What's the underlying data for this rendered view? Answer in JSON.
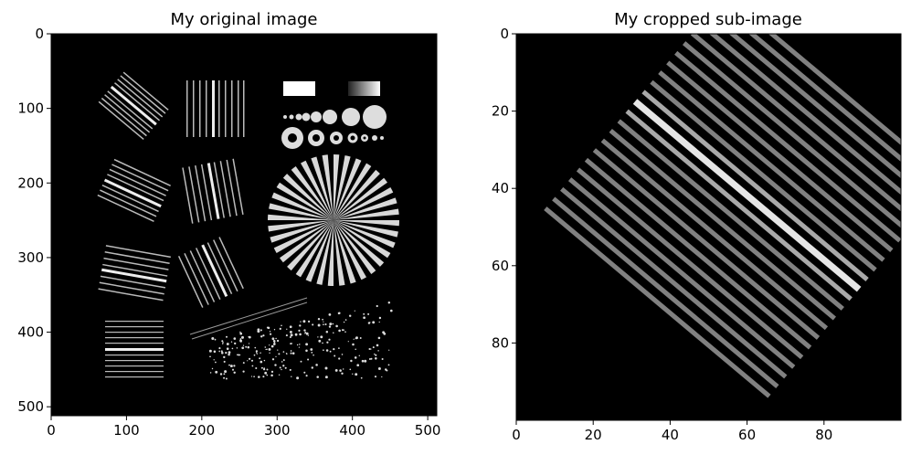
{
  "chart_data": [
    {
      "type": "image",
      "title": "My original image",
      "xlabel": "",
      "ylabel": "",
      "xlim": [
        0,
        512
      ],
      "ylim": [
        512,
        0
      ],
      "xticks": [
        "0",
        "100",
        "200",
        "300",
        "400",
        "500"
      ],
      "yticks": [
        "0",
        "100",
        "200",
        "300",
        "400",
        "500"
      ],
      "colormap": "gray",
      "grid": false,
      "content": [
        "rotated line-pair bar groups",
        "rectangles",
        "circles of decreasing size",
        "radial spoke star",
        "diagonal line pair",
        "scattered dots"
      ]
    },
    {
      "type": "image",
      "title": "My cropped sub-image",
      "xlabel": "",
      "ylabel": "",
      "xlim": [
        0,
        100
      ],
      "ylim": [
        100,
        0
      ],
      "xticks": [
        "0",
        "20",
        "40",
        "60",
        "80"
      ],
      "yticks": [
        "0",
        "20",
        "40",
        "60",
        "80"
      ],
      "colormap": "gray",
      "grid": false,
      "content": [
        "rotated stripe pattern with bright central stripe"
      ]
    }
  ]
}
